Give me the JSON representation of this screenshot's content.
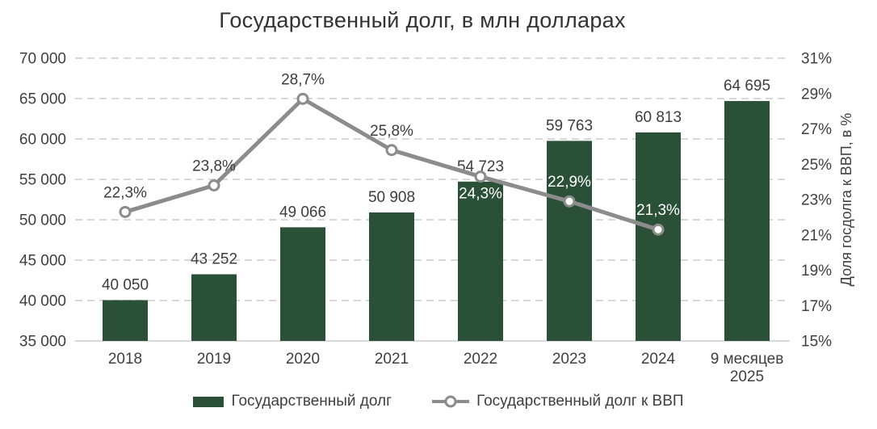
{
  "chart_data": {
    "type": "bar+line",
    "title": "Государственный долг, в млн долларах",
    "categories": [
      "2018",
      "2019",
      "2020",
      "2021",
      "2022",
      "2023",
      "2024",
      "9 месяцев\n2025"
    ],
    "bar_series": {
      "name": "Государственный долг",
      "color": "#2b5038",
      "values": [
        40050,
        43252,
        49066,
        50908,
        54723,
        59763,
        60813,
        64695
      ],
      "labels": [
        "40 050",
        "43 252",
        "49 066",
        "50 908",
        "54 723",
        "59 763",
        "60 813",
        "64 695"
      ]
    },
    "line_series": {
      "name": "Государственный долг к ВВП",
      "color": "#8c8c8c",
      "values": [
        22.3,
        23.8,
        28.7,
        25.8,
        24.3,
        22.9,
        21.3
      ],
      "labels": [
        "22,3%",
        "23,8%",
        "28,7%",
        "25,8%",
        "24,3%",
        "22,9%",
        "21,3%"
      ],
      "label_placement": [
        "above",
        "above",
        "above",
        "above",
        "below",
        "above",
        "above"
      ],
      "label_colors": [
        "#3d3d3d",
        "#3d3d3d",
        "#3d3d3d",
        "#3d3d3d",
        "#ffffff",
        "#ffffff",
        "#ffffff"
      ]
    },
    "left_axis": {
      "min": 35000,
      "max": 70000,
      "step": 5000,
      "tick_labels": [
        "70 000",
        "65 000",
        "60 000",
        "55 000",
        "50 000",
        "45 000",
        "40 000",
        "35 000"
      ]
    },
    "right_axis": {
      "min": 15,
      "max": 31,
      "step": 2,
      "tick_labels": [
        "31%",
        "29%",
        "27%",
        "25%",
        "23%",
        "21%",
        "19%",
        "17%",
        "15%"
      ],
      "title": "Доля госдолга к ВВП, в %"
    },
    "legend": [
      {
        "label": "Государственный долг",
        "swatch": "bar"
      },
      {
        "label": "Государственный долг к ВВП",
        "swatch": "line-marker"
      }
    ],
    "grid": {
      "style": "dashed",
      "color": "#d9d9d9",
      "baseline_color": "#d9d9d9"
    },
    "colors": {
      "bar": "#2b5038",
      "line": "#8c8c8c",
      "marker_fill": "#ffffff",
      "axis_text": "#3f3f3f",
      "value_label_text": "#3d3d3d",
      "title_text": "#333333"
    }
  }
}
